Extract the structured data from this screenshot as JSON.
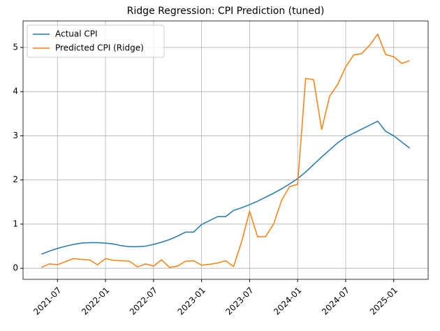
{
  "chart_data": {
    "type": "line",
    "title": "Ridge Regression: CPI Prediction (tuned)",
    "x": [
      "2021-05",
      "2021-06",
      "2021-07",
      "2021-08",
      "2021-09",
      "2021-10",
      "2021-11",
      "2021-12",
      "2022-01",
      "2022-02",
      "2022-03",
      "2022-04",
      "2022-05",
      "2022-06",
      "2022-07",
      "2022-08",
      "2022-09",
      "2022-10",
      "2022-11",
      "2022-12",
      "2023-01",
      "2023-02",
      "2023-03",
      "2023-04",
      "2023-05",
      "2023-06",
      "2023-07",
      "2023-08",
      "2023-09",
      "2023-10",
      "2023-11",
      "2023-12",
      "2024-01",
      "2024-02",
      "2024-03",
      "2024-04",
      "2024-05",
      "2024-06",
      "2024-07",
      "2024-08",
      "2024-09",
      "2024-10",
      "2024-11",
      "2024-12",
      "2025-01",
      "2025-02",
      "2025-03"
    ],
    "series": [
      {
        "name": "Actual CPI",
        "color": "#1f77b4",
        "values": [
          0.32,
          0.39,
          0.45,
          0.5,
          0.54,
          0.57,
          0.58,
          0.58,
          0.57,
          0.55,
          0.51,
          0.49,
          0.49,
          0.5,
          0.54,
          0.59,
          0.65,
          0.73,
          0.82,
          0.82,
          0.99,
          1.08,
          1.17,
          1.17,
          1.31,
          1.37,
          1.44,
          1.52,
          1.61,
          1.7,
          1.8,
          1.91,
          2.03,
          2.18,
          2.35,
          2.52,
          2.68,
          2.84,
          2.97,
          3.06,
          3.15,
          3.24,
          3.33,
          3.1,
          3.0,
          2.86,
          2.72
        ]
      },
      {
        "name": "Predicted CPI (Ridge)",
        "color": "#ff7f0e",
        "values": [
          0.02,
          0.1,
          0.08,
          0.15,
          0.22,
          0.2,
          0.19,
          0.08,
          0.22,
          0.18,
          0.17,
          0.16,
          0.03,
          0.1,
          0.05,
          0.19,
          0.02,
          0.05,
          0.16,
          0.17,
          0.07,
          0.09,
          0.12,
          0.17,
          0.04,
          0.6,
          1.29,
          0.71,
          0.72,
          1.0,
          1.54,
          1.85,
          1.9,
          4.3,
          4.27,
          3.14,
          3.9,
          4.16,
          4.56,
          4.83,
          4.86,
          5.05,
          5.3,
          4.84,
          4.79,
          4.64,
          4.7
        ]
      }
    ],
    "xticks": [
      "2021-07",
      "2022-01",
      "2022-07",
      "2023-01",
      "2023-07",
      "2024-01",
      "2024-07",
      "2025-01"
    ],
    "ylim": [
      -0.25,
      5.6
    ],
    "yticks": [
      0,
      1,
      2,
      3,
      4,
      5
    ],
    "grid": true,
    "legend": "upper left"
  }
}
